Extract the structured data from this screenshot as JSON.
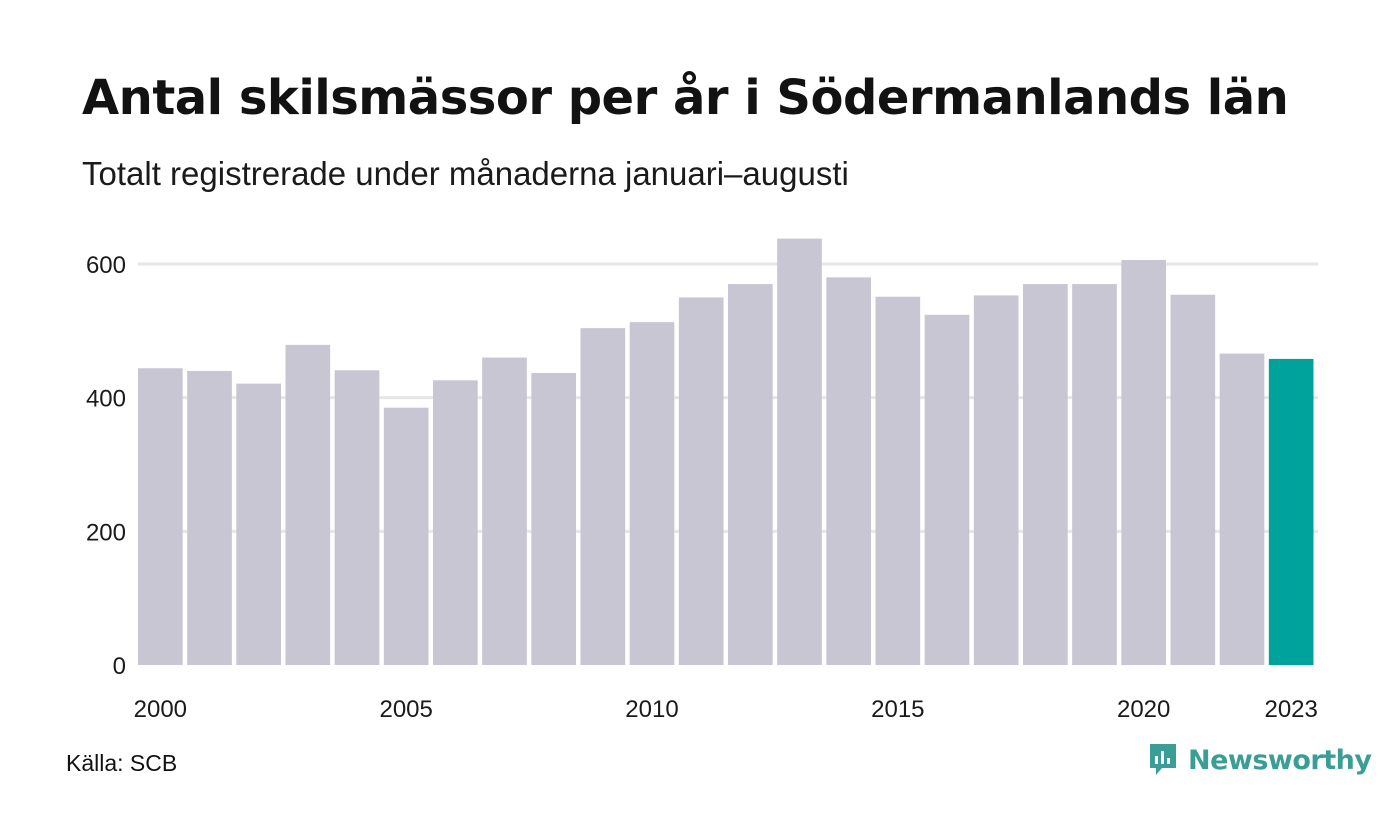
{
  "chart_data": {
    "type": "bar",
    "title": "Antal skilsmässor per år i Södermanlands län",
    "subtitle": "Totalt registrerade under månaderna januari–augusti",
    "categories": [
      "2000",
      "2001",
      "2002",
      "2003",
      "2004",
      "2005",
      "2006",
      "2007",
      "2008",
      "2009",
      "2010",
      "2011",
      "2012",
      "2013",
      "2014",
      "2015",
      "2016",
      "2017",
      "2018",
      "2019",
      "2020",
      "2021",
      "2022",
      "2023"
    ],
    "values": [
      444,
      440,
      421,
      479,
      441,
      385,
      426,
      460,
      437,
      504,
      513,
      550,
      570,
      638,
      580,
      551,
      524,
      553,
      570,
      570,
      606,
      554,
      466,
      458
    ],
    "x_tick_labels": [
      "2000",
      "2005",
      "2010",
      "2015",
      "2020",
      "2023"
    ],
    "y_ticks": [
      0,
      200,
      400,
      600
    ],
    "ylim": [
      0,
      650
    ],
    "grid": true,
    "colors": {
      "bar": "#c8c6d2",
      "highlight": "#00a39b",
      "highlight_category": "2023",
      "grid": "#e6e6e8"
    }
  },
  "footer": {
    "source": "Källa: SCB",
    "brand": "Newsworthy",
    "brand_icon": "newsworthy-logo-icon"
  }
}
